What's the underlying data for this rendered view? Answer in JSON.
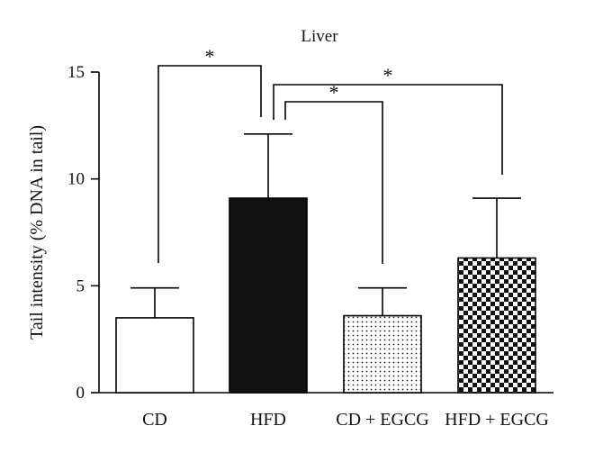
{
  "chart_data": {
    "type": "bar",
    "title": "Liver",
    "xlabel": "",
    "ylabel": "Tail intensity (% DNA in tail)",
    "ylim": [
      0,
      15
    ],
    "yticks": [
      0,
      5,
      10,
      15
    ],
    "categories": [
      "CD",
      "HFD",
      "CD + EGCG",
      "HFD + EGCG"
    ],
    "values": [
      3.5,
      9.1,
      3.6,
      6.3
    ],
    "errors": [
      1.4,
      3.0,
      1.3,
      2.8
    ],
    "fills": [
      "white",
      "black",
      "dots",
      "checker"
    ],
    "grid": false,
    "legend": "none",
    "significance": [
      {
        "from": 0,
        "to": 1,
        "label": "*"
      },
      {
        "from": 1,
        "to": 2,
        "label": "*"
      },
      {
        "from": 1,
        "to": 3,
        "label": "*"
      }
    ]
  }
}
